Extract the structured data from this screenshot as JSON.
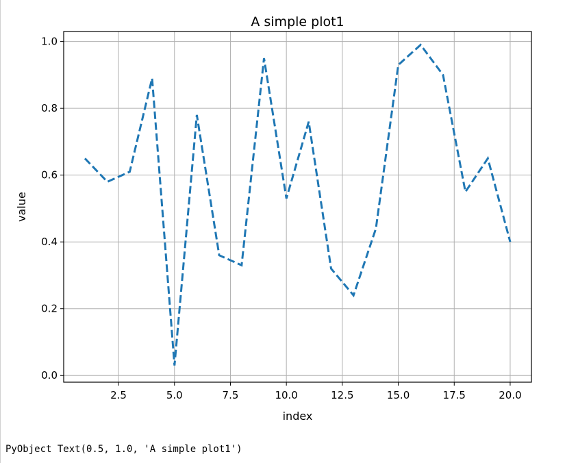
{
  "output": {
    "text": "PyObject Text(0.5, 1.0, 'A simple plot1')"
  },
  "chart_data": {
    "type": "line",
    "title": "A simple plot1",
    "xlabel": "index",
    "ylabel": "value",
    "xlim": [
      0.05,
      20.95
    ],
    "ylim": [
      -0.02,
      1.03
    ],
    "xticks": [
      2.5,
      5.0,
      7.5,
      10.0,
      12.5,
      15.0,
      17.5,
      20.0
    ],
    "xtick_labels": [
      "2.5",
      "5.0",
      "7.5",
      "10.0",
      "12.5",
      "15.0",
      "17.5",
      "20.0"
    ],
    "yticks": [
      0.0,
      0.2,
      0.4,
      0.6,
      0.8,
      1.0
    ],
    "ytick_labels": [
      "0.0",
      "0.2",
      "0.4",
      "0.6",
      "0.8",
      "1.0"
    ],
    "grid": true,
    "line_style": "dashed",
    "series": [
      {
        "color": "#1f77b4",
        "x": [
          1,
          2,
          3,
          4,
          5,
          6,
          7,
          8,
          9,
          10,
          11,
          12,
          13,
          14,
          15,
          16,
          17,
          18,
          19,
          20
        ],
        "values": [
          0.65,
          0.58,
          0.61,
          0.89,
          0.03,
          0.78,
          0.36,
          0.33,
          0.95,
          0.53,
          0.76,
          0.32,
          0.24,
          0.44,
          0.93,
          0.99,
          0.9,
          0.55,
          0.65,
          0.4
        ]
      }
    ]
  }
}
